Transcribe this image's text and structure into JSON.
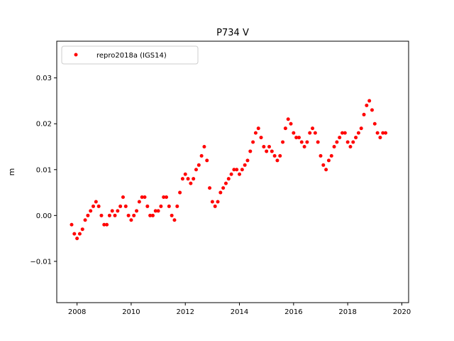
{
  "chart_data": {
    "type": "scatter",
    "title": "P734 V",
    "xlabel": "",
    "ylabel": "m",
    "xlim": [
      2007.25,
      2020.25
    ],
    "ylim": [
      -0.019,
      0.038
    ],
    "xticks": [
      2008,
      2010,
      2012,
      2014,
      2016,
      2018,
      2020
    ],
    "xtick_labels": [
      "2008",
      "2010",
      "2012",
      "2014",
      "2016",
      "2018",
      "2020"
    ],
    "yticks": [
      -0.01,
      0.0,
      0.01,
      0.02,
      0.03
    ],
    "ytick_labels": [
      "−0.01",
      "0.00",
      "0.01",
      "0.02",
      "0.03"
    ],
    "grid": false,
    "legend_position": "top-left",
    "series": [
      {
        "name": "repro2018a (IGS14)",
        "color": "#ff0000",
        "marker": "circle",
        "x": [
          2007.8,
          2007.9,
          2008.0,
          2008.1,
          2008.2,
          2008.3,
          2008.4,
          2008.5,
          2008.6,
          2008.7,
          2008.8,
          2008.9,
          2009.0,
          2009.1,
          2009.2,
          2009.3,
          2009.4,
          2009.5,
          2009.6,
          2009.7,
          2009.8,
          2009.9,
          2010.0,
          2010.1,
          2010.2,
          2010.3,
          2010.4,
          2010.5,
          2010.6,
          2010.7,
          2010.8,
          2010.9,
          2011.0,
          2011.1,
          2011.2,
          2011.3,
          2011.4,
          2011.5,
          2011.6,
          2011.7,
          2011.8,
          2011.9,
          2012.0,
          2012.1,
          2012.2,
          2012.3,
          2012.4,
          2012.5,
          2012.6,
          2012.7,
          2012.8,
          2012.9,
          2013.0,
          2013.1,
          2013.2,
          2013.3,
          2013.4,
          2013.5,
          2013.6,
          2013.7,
          2013.8,
          2013.9,
          2014.0,
          2014.1,
          2014.2,
          2014.3,
          2014.4,
          2014.5,
          2014.6,
          2014.7,
          2014.8,
          2014.9,
          2015.0,
          2015.1,
          2015.2,
          2015.3,
          2015.4,
          2015.5,
          2015.6,
          2015.7,
          2015.8,
          2015.9,
          2016.0,
          2016.1,
          2016.2,
          2016.3,
          2016.4,
          2016.5,
          2016.6,
          2016.7,
          2016.8,
          2016.9,
          2017.0,
          2017.1,
          2017.2,
          2017.3,
          2017.4,
          2017.5,
          2017.6,
          2017.7,
          2017.8,
          2017.9,
          2018.0,
          2018.1,
          2018.2,
          2018.3,
          2018.4,
          2018.5,
          2018.6,
          2018.7,
          2018.8,
          2018.9,
          2019.0,
          2019.1,
          2019.2,
          2019.3,
          2019.4
        ],
        "y": [
          -0.002,
          -0.004,
          -0.005,
          -0.004,
          -0.003,
          -0.001,
          0.0,
          0.001,
          0.002,
          0.003,
          0.002,
          0.0,
          -0.002,
          -0.002,
          0.0,
          0.001,
          0.0,
          0.001,
          0.002,
          0.004,
          0.002,
          0.0,
          -0.001,
          0.0,
          0.001,
          0.003,
          0.004,
          0.004,
          0.002,
          0.0,
          0.0,
          0.001,
          0.001,
          0.002,
          0.004,
          0.004,
          0.002,
          0.0,
          -0.001,
          0.002,
          0.005,
          0.008,
          0.009,
          0.008,
          0.007,
          0.008,
          0.01,
          0.011,
          0.013,
          0.015,
          0.012,
          0.006,
          0.003,
          0.002,
          0.003,
          0.005,
          0.006,
          0.007,
          0.008,
          0.009,
          0.01,
          0.01,
          0.009,
          0.01,
          0.011,
          0.012,
          0.014,
          0.016,
          0.018,
          0.019,
          0.017,
          0.015,
          0.014,
          0.015,
          0.014,
          0.013,
          0.012,
          0.013,
          0.016,
          0.019,
          0.021,
          0.02,
          0.018,
          0.017,
          0.017,
          0.016,
          0.015,
          0.016,
          0.018,
          0.019,
          0.018,
          0.016,
          0.013,
          0.011,
          0.01,
          0.012,
          0.013,
          0.015,
          0.016,
          0.017,
          0.018,
          0.018,
          0.016,
          0.015,
          0.016,
          0.017,
          0.018,
          0.019,
          0.022,
          0.024,
          0.025,
          0.023,
          0.02,
          0.018,
          0.017,
          0.018,
          0.018
        ]
      }
    ]
  }
}
